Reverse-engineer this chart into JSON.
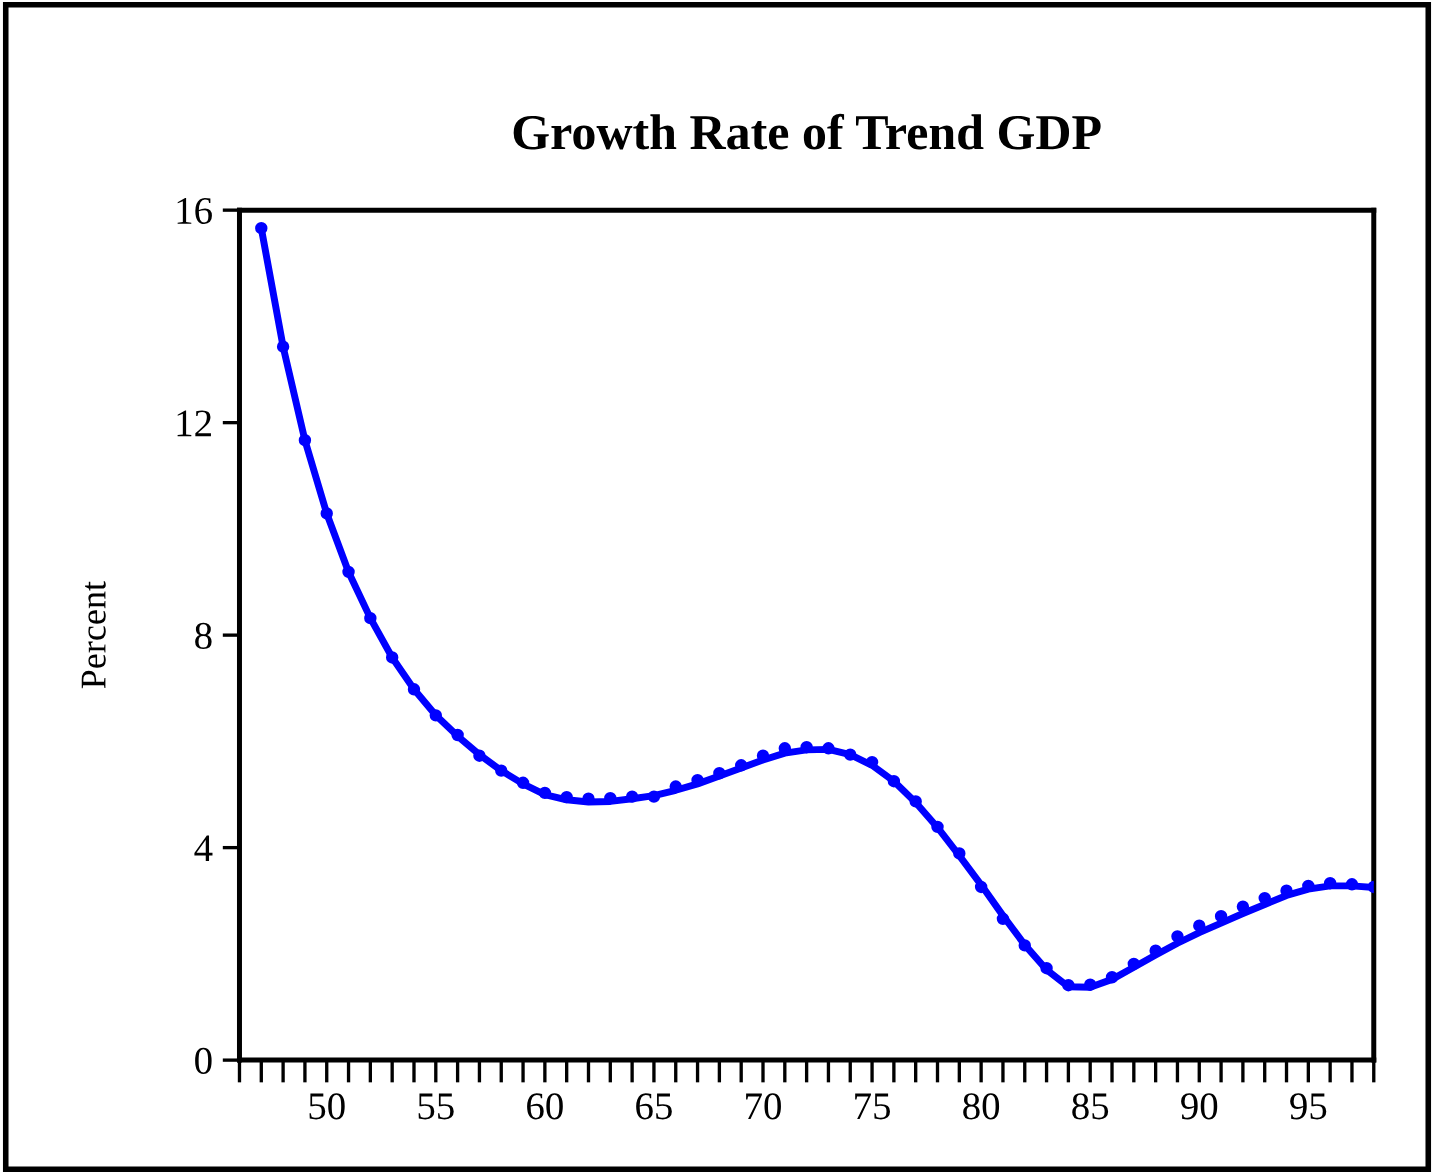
{
  "chart_data": {
    "type": "line",
    "title": "Growth Rate of Trend GDP",
    "ylabel": "Percent",
    "xlim": [
      46,
      98
    ],
    "ylim": [
      0,
      16
    ],
    "yticks": [
      0,
      4,
      8,
      12,
      16
    ],
    "xticks": [
      {
        "value": 46,
        "label": null
      },
      {
        "value": 47,
        "label": null
      },
      {
        "value": 48,
        "label": null
      },
      {
        "value": 49,
        "label": null
      },
      50,
      {
        "value": 51,
        "label": null
      },
      {
        "value": 52,
        "label": null
      },
      {
        "value": 53,
        "label": null
      },
      {
        "value": 54,
        "label": null
      },
      55,
      {
        "value": 56,
        "label": null
      },
      {
        "value": 57,
        "label": null
      },
      {
        "value": 58,
        "label": null
      },
      {
        "value": 59,
        "label": null
      },
      60,
      {
        "value": 61,
        "label": null
      },
      {
        "value": 62,
        "label": null
      },
      {
        "value": 63,
        "label": null
      },
      {
        "value": 64,
        "label": null
      },
      65,
      {
        "value": 66,
        "label": null
      },
      {
        "value": 67,
        "label": null
      },
      {
        "value": 68,
        "label": null
      },
      {
        "value": 69,
        "label": null
      },
      70,
      {
        "value": 71,
        "label": null
      },
      {
        "value": 72,
        "label": null
      },
      {
        "value": 73,
        "label": null
      },
      {
        "value": 74,
        "label": null
      },
      75,
      {
        "value": 76,
        "label": null
      },
      {
        "value": 77,
        "label": null
      },
      {
        "value": 78,
        "label": null
      },
      {
        "value": 79,
        "label": null
      },
      80,
      {
        "value": 81,
        "label": null
      },
      {
        "value": 82,
        "label": null
      },
      {
        "value": 83,
        "label": null
      },
      {
        "value": 84,
        "label": null
      },
      85,
      {
        "value": 86,
        "label": null
      },
      {
        "value": 87,
        "label": null
      },
      {
        "value": 88,
        "label": null
      },
      {
        "value": 89,
        "label": null
      },
      90,
      {
        "value": 91,
        "label": null
      },
      {
        "value": 92,
        "label": null
      },
      {
        "value": 93,
        "label": null
      },
      {
        "value": 94,
        "label": null
      },
      95,
      {
        "value": 96,
        "label": null
      },
      {
        "value": 97,
        "label": null
      },
      {
        "value": 98,
        "label": null
      }
    ],
    "x": [
      47,
      48,
      49,
      50,
      51,
      52,
      53,
      54,
      55,
      56,
      57,
      58,
      59,
      60,
      61,
      62,
      63,
      64,
      65,
      66,
      67,
      68,
      69,
      70,
      71,
      72,
      73,
      74,
      75,
      76,
      77,
      78,
      79,
      80,
      81,
      82,
      83,
      84,
      85,
      86,
      87,
      88,
      89,
      90,
      91,
      92,
      93,
      94,
      95,
      96,
      97,
      98
    ],
    "grid": false,
    "legend": false,
    "series": [
      {
        "color": "#0000ff",
        "marker": "none",
        "line_style": "solid",
        "values": [
          15.66,
          13.43,
          11.67,
          10.29,
          9.19,
          8.32,
          7.58,
          6.98,
          6.49,
          6.1,
          5.75,
          5.45,
          5.2,
          5.0,
          4.9,
          4.86,
          4.87,
          4.92,
          4.98,
          5.08,
          5.2,
          5.35,
          5.5,
          5.65,
          5.78,
          5.84,
          5.85,
          5.75,
          5.55,
          5.25,
          4.85,
          4.38,
          3.85,
          3.3,
          2.72,
          2.17,
          1.7,
          1.38,
          1.37,
          1.52,
          1.75,
          1.98,
          2.2,
          2.4,
          2.58,
          2.76,
          2.93,
          3.1,
          3.22,
          3.28,
          3.28,
          3.25
        ]
      },
      {
        "type": "scatter",
        "color": "#0000ff",
        "marker": "circle",
        "values": [
          15.66,
          13.43,
          11.67,
          10.29,
          9.19,
          8.32,
          7.58,
          6.98,
          6.49,
          6.12,
          5.73,
          5.45,
          5.22,
          5.03,
          4.95,
          4.92,
          4.93,
          4.96,
          4.96,
          5.15,
          5.27,
          5.4,
          5.55,
          5.73,
          5.87,
          5.89,
          5.87,
          5.75,
          5.61,
          5.25,
          4.87,
          4.39,
          3.89,
          3.26,
          2.66,
          2.16,
          1.73,
          1.41,
          1.42,
          1.56,
          1.81,
          2.06,
          2.33,
          2.53,
          2.71,
          2.89,
          3.05,
          3.19,
          3.28,
          3.33,
          3.31,
          3.26
        ]
      }
    ]
  }
}
